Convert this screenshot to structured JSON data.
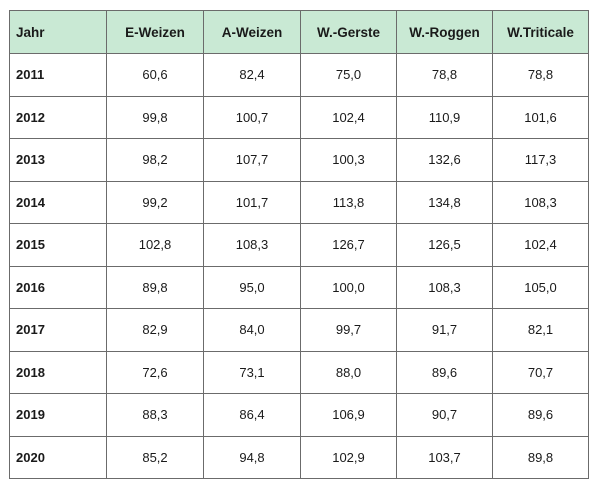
{
  "table": {
    "headers": [
      "Jahr",
      "E-Weizen",
      "A-Weizen",
      "W.-Gerste",
      "W.-Roggen",
      "W.Triticale"
    ],
    "rows": [
      [
        "2011",
        "60,6",
        "82,4",
        "75,0",
        "78,8",
        "78,8"
      ],
      [
        "2012",
        "99,8",
        "100,7",
        "102,4",
        "110,9",
        "101,6"
      ],
      [
        "2013",
        "98,2",
        "107,7",
        "100,3",
        "132,6",
        "117,3"
      ],
      [
        "2014",
        "99,2",
        "101,7",
        "113,8",
        "134,8",
        "108,3"
      ],
      [
        "2015",
        "102,8",
        "108,3",
        "126,7",
        "126,5",
        "102,4"
      ],
      [
        "2016",
        "89,8",
        "95,0",
        "100,0",
        "108,3",
        "105,0"
      ],
      [
        "2017",
        "82,9",
        "84,0",
        "99,7",
        "91,7",
        "82,1"
      ],
      [
        "2018",
        "72,6",
        "73,1",
        "88,0",
        "89,6",
        "70,7"
      ],
      [
        "2019",
        "88,3",
        "86,4",
        "106,9",
        "90,7",
        "89,6"
      ],
      [
        "2020",
        "85,2",
        "94,8",
        "102,9",
        "103,7",
        "89,8"
      ]
    ]
  },
  "colors": {
    "header_background": "#c9e9d4",
    "border": "#6b6b6b"
  }
}
